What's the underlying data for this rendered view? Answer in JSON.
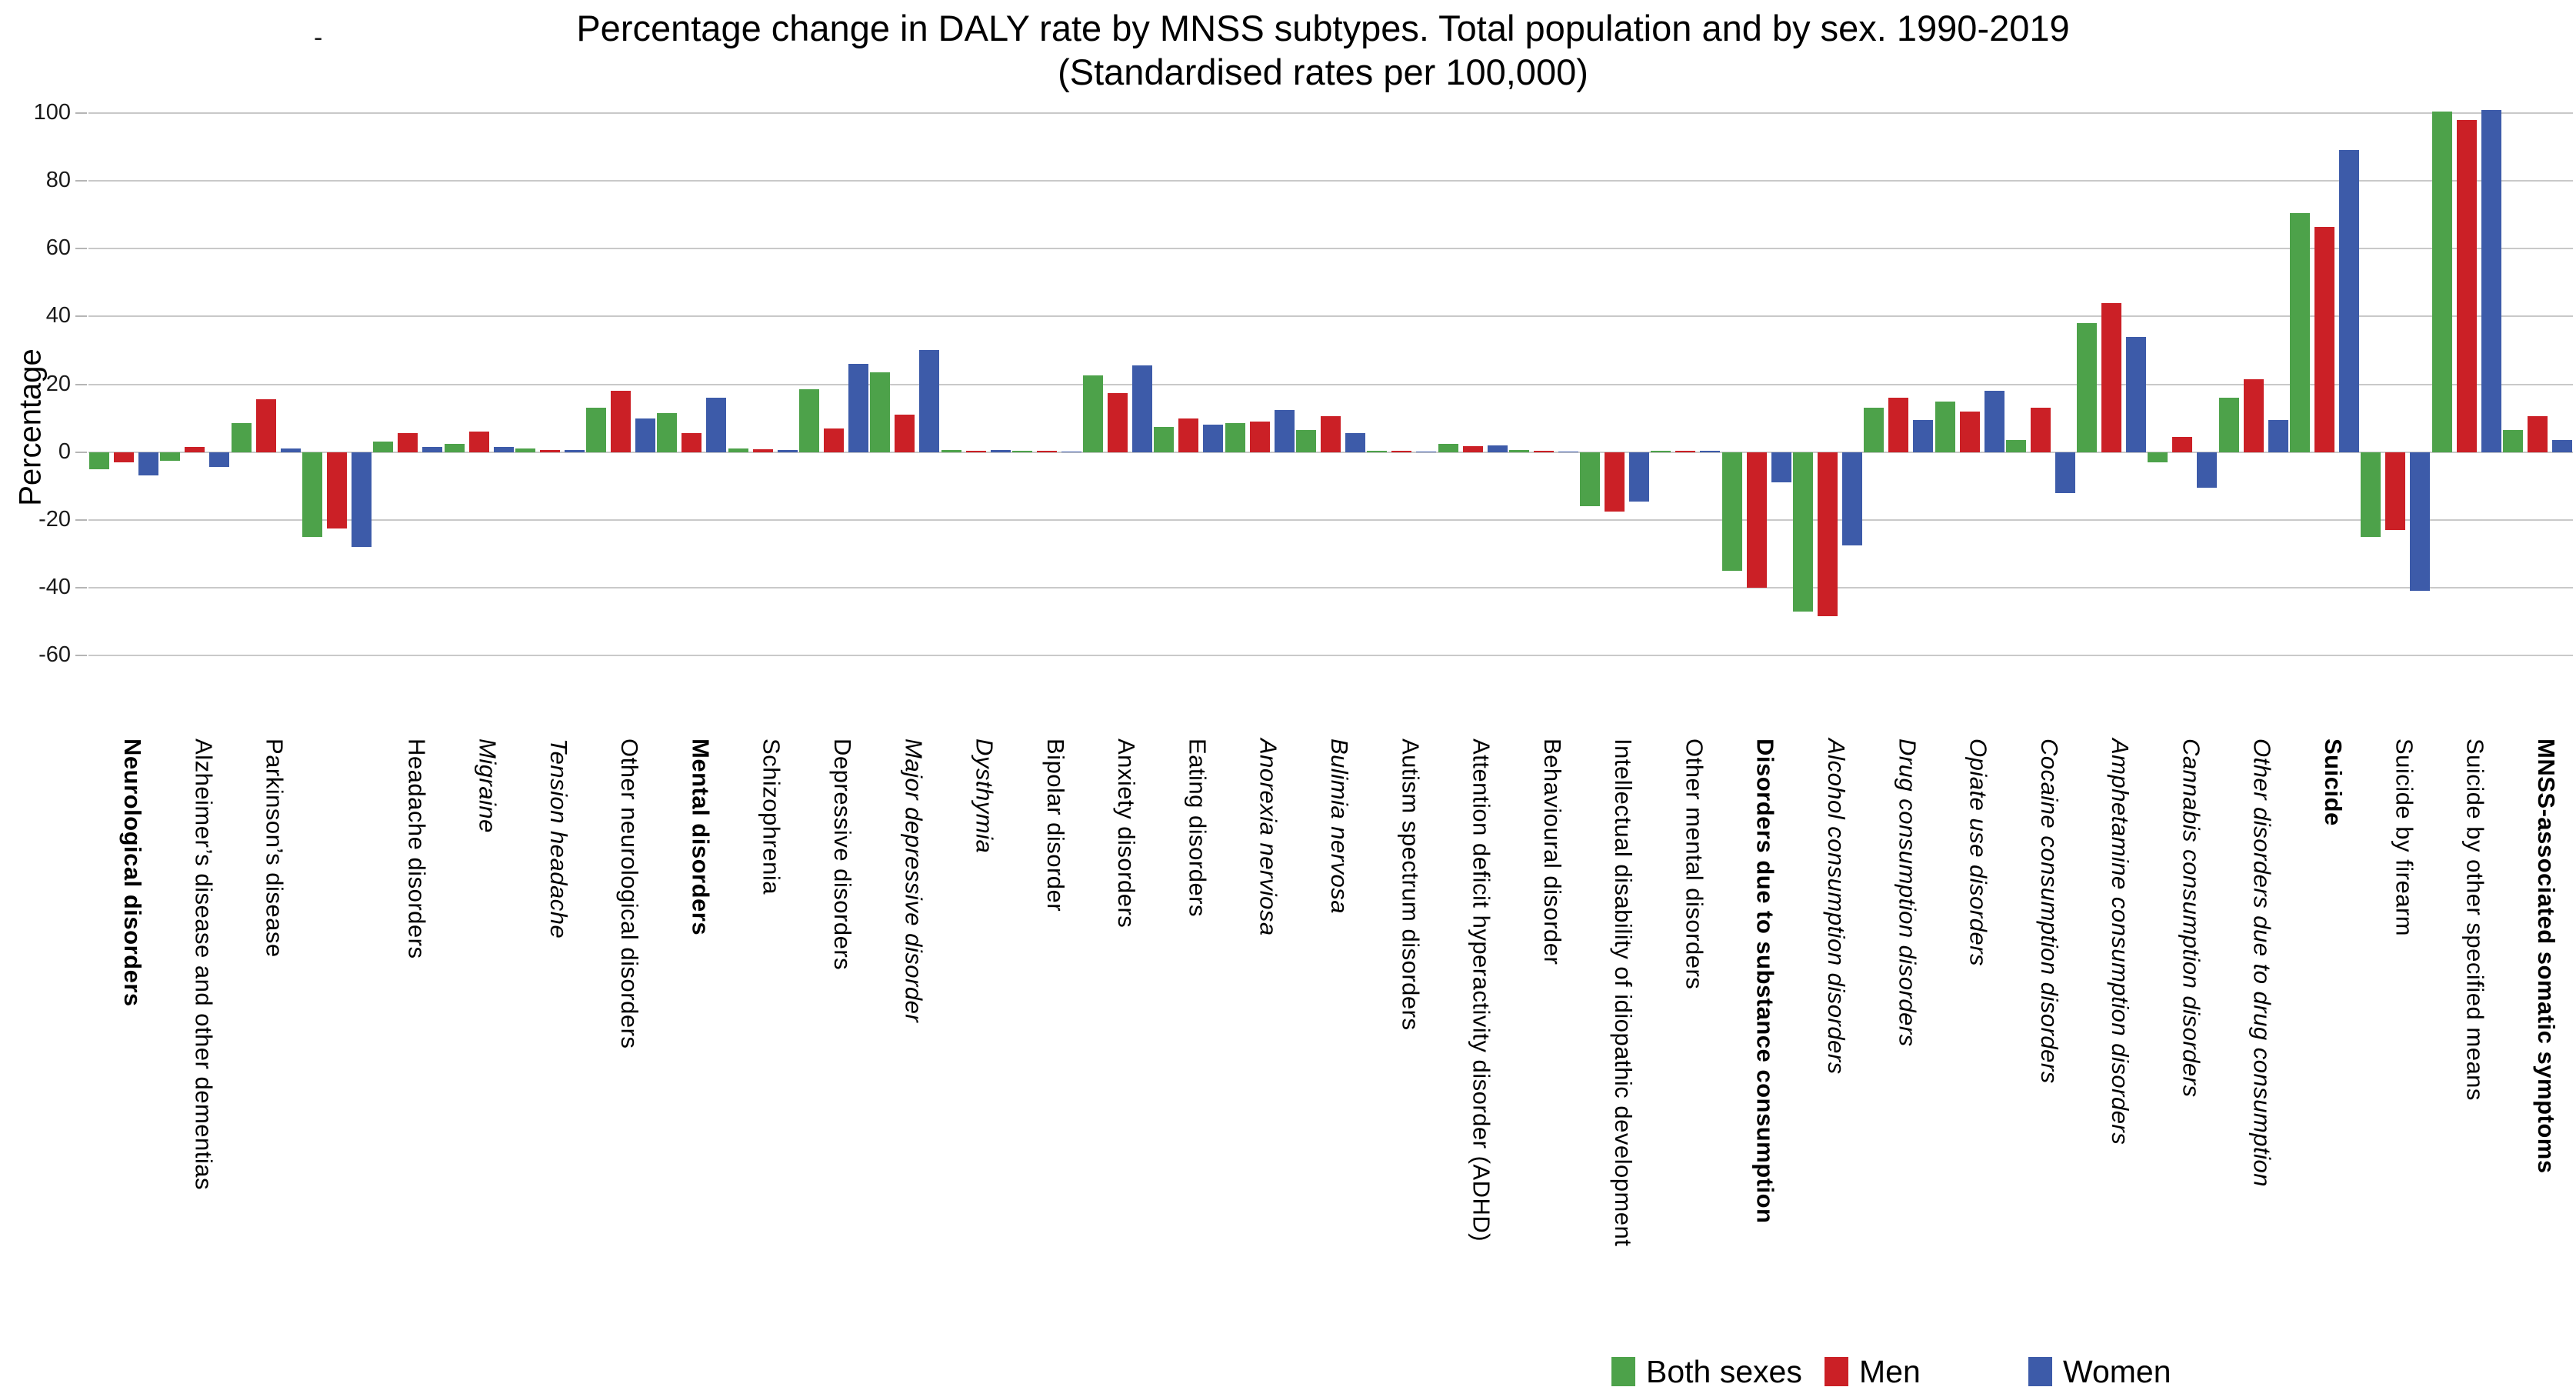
{
  "figure": {
    "stray_mark": "-"
  },
  "chart_data": {
    "type": "bar",
    "title": "Percentage change in DALY rate by MNSS subtypes. Total population and by sex. 1990-2019",
    "subtitle": "(Standardised rates per 100,000)",
    "ylabel": "Percentage",
    "ylim": [
      -60,
      100
    ],
    "yticks": [
      100,
      80,
      60,
      40,
      20,
      0,
      -20,
      -40,
      -60
    ],
    "grid": true,
    "legend_position": "bottom-right",
    "categories": [
      {
        "label": "Neurological disorders",
        "bold": true,
        "italic": false
      },
      {
        "label": "Alzheimer’s disease and other dementias",
        "bold": false,
        "italic": false
      },
      {
        "label": "Parkinson’s disease",
        "bold": false,
        "italic": false
      },
      {
        "label": "",
        "bold": false,
        "italic": false
      },
      {
        "label": "Headache disorders",
        "bold": false,
        "italic": false
      },
      {
        "label": "Migraine",
        "bold": false,
        "italic": true
      },
      {
        "label": "Tension headache",
        "bold": false,
        "italic": true
      },
      {
        "label": "Other neurological disorders",
        "bold": false,
        "italic": false
      },
      {
        "label": "Mental disorders",
        "bold": true,
        "italic": false
      },
      {
        "label": "Schizophrenia",
        "bold": false,
        "italic": false
      },
      {
        "label": "Depressive disorders",
        "bold": false,
        "italic": false
      },
      {
        "label": "Major depressive disorder",
        "bold": false,
        "italic": true
      },
      {
        "label": "Dysthymia",
        "bold": false,
        "italic": true
      },
      {
        "label": "Bipolar disorder",
        "bold": false,
        "italic": false
      },
      {
        "label": "Anxiety disorders",
        "bold": false,
        "italic": false
      },
      {
        "label": "Eating disorders",
        "bold": false,
        "italic": false
      },
      {
        "label": "Anorexia nerviosa",
        "bold": false,
        "italic": true
      },
      {
        "label": "Bulimia nervosa",
        "bold": false,
        "italic": true
      },
      {
        "label": "Autism spectrum disorders",
        "bold": false,
        "italic": false
      },
      {
        "label": "Attention deficit hyperactivity disorder (ADHD)",
        "bold": false,
        "italic": false
      },
      {
        "label": "Behavioural disorder",
        "bold": false,
        "italic": false
      },
      {
        "label": "Intellectual disability of idiopathic development",
        "bold": false,
        "italic": false
      },
      {
        "label": "Other mental disorders",
        "bold": false,
        "italic": false
      },
      {
        "label": "Disorders due to substance consumption",
        "bold": true,
        "italic": false
      },
      {
        "label": "Alcohol consumption disorders",
        "bold": false,
        "italic": true
      },
      {
        "label": "Drug consumption disorders",
        "bold": false,
        "italic": true
      },
      {
        "label": "Opiate use disorders",
        "bold": false,
        "italic": true
      },
      {
        "label": "Cocaine consumption disorders",
        "bold": false,
        "italic": true
      },
      {
        "label": "Amphetamine consumption disorders",
        "bold": false,
        "italic": true
      },
      {
        "label": "Cannabis consumption disorders",
        "bold": false,
        "italic": true
      },
      {
        "label": "Other disorders due to drug consumption",
        "bold": false,
        "italic": true
      },
      {
        "label": "Suicide",
        "bold": true,
        "italic": false
      },
      {
        "label": "Suicide by firearm",
        "bold": false,
        "italic": false
      },
      {
        "label": "Suicide by other specified means",
        "bold": false,
        "italic": false
      },
      {
        "label": "MNSS-associated somatic symptoms",
        "bold": true,
        "italic": false
      }
    ],
    "series": [
      {
        "name": "Both sexes",
        "color": "#4DA24A",
        "values": [
          -5,
          -2.5,
          8.5,
          -25,
          3,
          2.5,
          1,
          13,
          11.5,
          1,
          18.5,
          23.5,
          0.5,
          0.4,
          22.5,
          7.5,
          8.5,
          6.5,
          0.4,
          2.4,
          0.7,
          -16,
          0.4,
          -35,
          -47,
          13,
          15,
          3.5,
          38,
          -3,
          16,
          70.5,
          -25,
          100.5,
          6.5
        ]
      },
      {
        "name": "Men",
        "color": "#CB2026",
        "values": [
          -3,
          1.5,
          15.5,
          -22.5,
          5.5,
          6,
          0.6,
          18,
          5.5,
          0.8,
          7,
          11,
          0.3,
          0.3,
          17.5,
          10,
          9,
          10.5,
          0.3,
          1.8,
          0.4,
          -17.5,
          0.3,
          -40,
          -48.5,
          16,
          12,
          13,
          44,
          4.5,
          21.5,
          66.5,
          -23,
          98,
          10.5
        ]
      },
      {
        "name": "Women",
        "color": "#3D5BA9",
        "values": [
          -7,
          -4.5,
          1,
          -28,
          1.5,
          1.5,
          0.6,
          10,
          16,
          0.7,
          26,
          30,
          0.6,
          0.2,
          25.5,
          8,
          12.5,
          5.5,
          0.2,
          2,
          0.2,
          -14.5,
          0.3,
          -9,
          -27.5,
          9.5,
          18,
          -12,
          34,
          -10.5,
          9.5,
          89,
          -41,
          101,
          3.5
        ]
      }
    ]
  }
}
